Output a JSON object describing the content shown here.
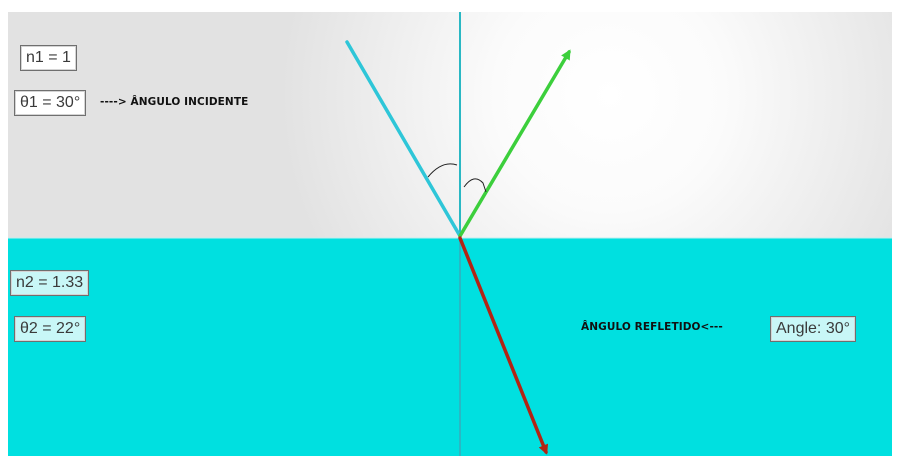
{
  "colors": {
    "air_medium": "#e3e3e3",
    "air_glow": "#ffffff",
    "water_medium": "#00e0e0",
    "normal_line": "#2ab8c4",
    "incident_ray": "#2ec6d8",
    "reflected_ray": "#3ccf3c",
    "refracted_ray": "#b32414"
  },
  "medium1": {
    "refractive_index_label": "n1 = 1",
    "angle_label": "θ1 = 30°",
    "angle_degrees": 30
  },
  "medium2": {
    "refractive_index_label": "n2 = 1.33",
    "angle_label": "θ2 = 22°",
    "angle_degrees": 22
  },
  "reflection": {
    "angle_readout": "Angle: 30°",
    "angle_degrees": 30
  },
  "annotations": {
    "incident_caption": "----> ÂNGULO INCIDENTE",
    "reflected_caption": "ÂNGULO REFLETIDO<---"
  }
}
